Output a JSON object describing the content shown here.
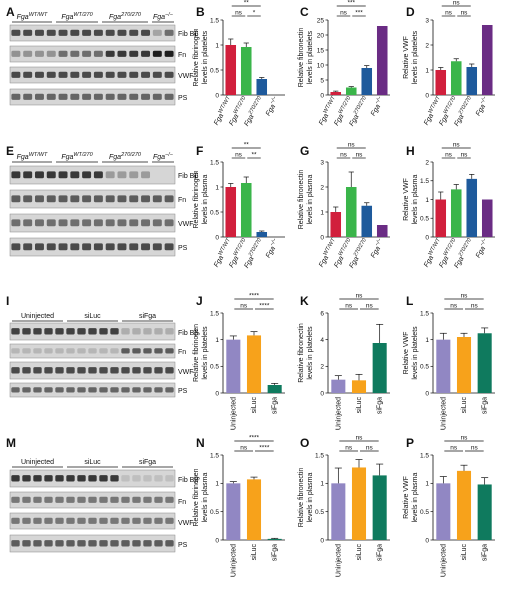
{
  "figure": {
    "panels": {
      "A": "A",
      "B": "B",
      "C": "C",
      "D": "D",
      "E": "E",
      "F": "F",
      "G": "G",
      "H": "H",
      "I": "I",
      "J": "J",
      "K": "K",
      "L": "L",
      "M": "M",
      "N": "N",
      "O": "O",
      "P": "P"
    },
    "blot_labels": {
      "fib": "Fib Bβ",
      "fn": "Fn",
      "vwf": "VWF",
      "ps": "PS"
    },
    "genotype_labels": [
      {
        "base": "Fga",
        "sup": "WT/WT"
      },
      {
        "base": "Fga",
        "sup": "WT/270"
      },
      {
        "base": "Fga",
        "sup": "270/270"
      },
      {
        "base": "Fga",
        "sup": "−/−"
      }
    ],
    "kd_labels": [
      "Uninjected",
      "siLuc",
      "siFga"
    ]
  },
  "colors": {
    "wt": "#d11f3c",
    "het": "#3ab54a",
    "hom": "#1e5a9c",
    "ko": "#6a2c84",
    "uninj": "#9187c3",
    "siluc": "#f7a21b",
    "sifga": "#0f7a5e"
  },
  "chart_data": [
    {
      "panel": "B",
      "type": "bar",
      "ylabel": "Relative fibrinogen levels in platelets",
      "ylim": [
        0,
        1.5
      ],
      "yticks": [
        0,
        0.5,
        1.0,
        1.5
      ],
      "categories": [
        "FgaWT/WT",
        "FgaWT/270",
        "Fga270/270",
        "Fga−/−"
      ],
      "values": [
        1.0,
        0.96,
        0.32,
        0.0
      ],
      "errors": [
        0.12,
        0.08,
        0.03,
        0.0
      ],
      "sig": [
        "**",
        "ns",
        "*"
      ]
    },
    {
      "panel": "C",
      "type": "bar",
      "ylabel": "Relative fibronectin levels in platelets",
      "ylim": [
        0,
        25
      ],
      "yticks": [
        0,
        5,
        10,
        15,
        20,
        25
      ],
      "categories": [
        "FgaWT/WT",
        "FgaWT/270",
        "Fga270/270",
        "Fga−/−"
      ],
      "values": [
        1.0,
        2.5,
        9.0,
        23.0
      ],
      "errors": [
        0.3,
        0.3,
        0.8,
        0.0
      ],
      "sig": [
        "***",
        "ns",
        "***"
      ]
    },
    {
      "panel": "D",
      "type": "bar",
      "ylabel": "Relative VWF levels in platelets",
      "ylim": [
        0,
        3
      ],
      "yticks": [
        0,
        1,
        2,
        3
      ],
      "categories": [
        "FgaWT/WT",
        "FgaWT/270",
        "Fga270/270",
        "Fga−/−"
      ],
      "values": [
        1.0,
        1.35,
        1.12,
        2.8
      ],
      "errors": [
        0.1,
        0.1,
        0.12,
        0.0
      ],
      "sig": [
        "ns",
        "ns",
        "ns"
      ]
    },
    {
      "panel": "F",
      "type": "bar",
      "ylabel": "Relative fibrinogen levels in plasma",
      "ylim": [
        0,
        1.5
      ],
      "yticks": [
        0,
        0.5,
        1.0,
        1.5
      ],
      "categories": [
        "FgaWT/WT",
        "FgaWT/270",
        "Fga270/270",
        "Fga−/−"
      ],
      "values": [
        1.0,
        1.08,
        0.1,
        0.0
      ],
      "errors": [
        0.07,
        0.12,
        0.02,
        0.0
      ],
      "sig": [
        "**",
        "ns",
        "**"
      ]
    },
    {
      "panel": "G",
      "type": "bar",
      "ylabel": "Relative fibronectin levels in plasma",
      "ylim": [
        0,
        3
      ],
      "yticks": [
        0,
        1,
        2,
        3
      ],
      "categories": [
        "FgaWT/WT",
        "FgaWT/270",
        "Fga270/270",
        "Fga−/−"
      ],
      "values": [
        1.0,
        2.0,
        1.25,
        0.48
      ],
      "errors": [
        0.2,
        0.6,
        0.12,
        0.0
      ],
      "sig": [
        "ns",
        "ns",
        "ns"
      ]
    },
    {
      "panel": "H",
      "type": "bar",
      "ylabel": "Relative VWF levels in plasma",
      "ylim": [
        0,
        2.0
      ],
      "yticks": [
        0,
        0.5,
        1.0,
        1.5,
        2.0
      ],
      "categories": [
        "FgaWT/WT",
        "FgaWT/270",
        "Fga270/270",
        "Fga−/−"
      ],
      "values": [
        1.0,
        1.27,
        1.55,
        1.0
      ],
      "errors": [
        0.2,
        0.13,
        0.12,
        0.0
      ],
      "sig": [
        "ns",
        "ns",
        "ns"
      ]
    },
    {
      "panel": "J",
      "type": "bar",
      "ylabel": "Relative fibrinogen levels in platelets",
      "ylim": [
        0,
        1.5
      ],
      "yticks": [
        0,
        0.5,
        1.0,
        1.5
      ],
      "categories": [
        "Uninjected",
        "siLuc",
        "siFga"
      ],
      "values": [
        1.0,
        1.08,
        0.15
      ],
      "errors": [
        0.07,
        0.07,
        0.03
      ],
      "sig": [
        "****",
        "ns",
        "****"
      ]
    },
    {
      "panel": "K",
      "type": "bar",
      "ylabel": "Relative fibronectin levels in platelets",
      "ylim": [
        0,
        6
      ],
      "yticks": [
        0,
        2,
        4,
        6
      ],
      "categories": [
        "Uninjected",
        "siLuc",
        "siFga"
      ],
      "values": [
        1.0,
        0.95,
        3.75
      ],
      "errors": [
        0.3,
        0.45,
        1.4
      ],
      "sig": [
        "ns",
        "ns",
        "ns"
      ]
    },
    {
      "panel": "L",
      "type": "bar",
      "ylabel": "Relative VWF levels in platelets",
      "ylim": [
        0,
        1.5
      ],
      "yticks": [
        0,
        0.5,
        1.0,
        1.5
      ],
      "categories": [
        "Uninjected",
        "siLuc",
        "siFga"
      ],
      "values": [
        1.0,
        1.05,
        1.12
      ],
      "errors": [
        0.12,
        0.07,
        0.1
      ],
      "sig": [
        "ns",
        "ns",
        "ns"
      ]
    },
    {
      "panel": "N",
      "type": "bar",
      "ylabel": "Relative fibrinogen levels in plasma",
      "ylim": [
        0,
        1.5
      ],
      "yticks": [
        0,
        0.5,
        1.0,
        1.5
      ],
      "categories": [
        "Uninjected",
        "siLuc",
        "siFga"
      ],
      "values": [
        1.0,
        1.07,
        0.02
      ],
      "errors": [
        0.03,
        0.04,
        0.01
      ],
      "sig": [
        "****",
        "ns",
        "****"
      ]
    },
    {
      "panel": "O",
      "type": "bar",
      "ylabel": "Relative fibronectin levels in plasma",
      "ylim": [
        0,
        1.5
      ],
      "yticks": [
        0,
        0.5,
        1.0,
        1.5
      ],
      "categories": [
        "Uninjected",
        "siLuc",
        "siFga"
      ],
      "values": [
        1.0,
        1.28,
        1.14
      ],
      "errors": [
        0.27,
        0.14,
        0.2
      ],
      "sig": [
        "ns",
        "ns",
        "ns"
      ]
    },
    {
      "panel": "P",
      "type": "bar",
      "ylabel": "Relative VWF levels in plasma",
      "ylim": [
        0,
        1.5
      ],
      "yticks": [
        0,
        0.5,
        1.0,
        1.5
      ],
      "categories": [
        "Uninjected",
        "siLuc",
        "siFga"
      ],
      "values": [
        1.0,
        1.22,
        0.98
      ],
      "errors": [
        0.12,
        0.1,
        0.12
      ],
      "sig": [
        "ns",
        "ns",
        "ns"
      ]
    }
  ]
}
